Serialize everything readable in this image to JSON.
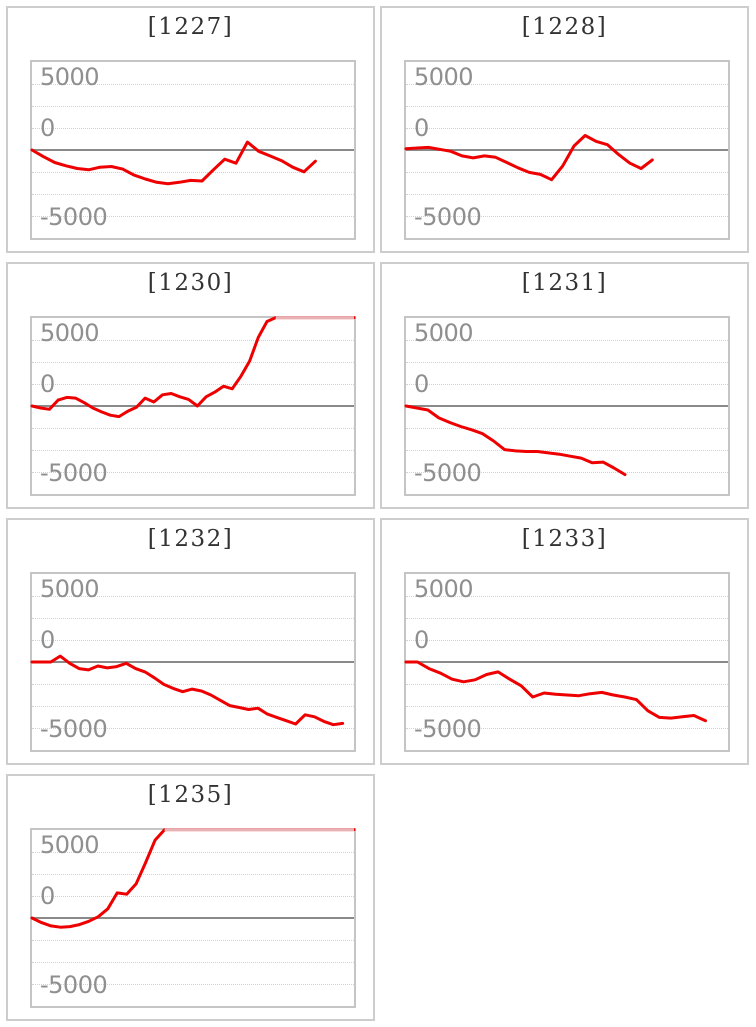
{
  "page": {
    "description": "Grid of per-machine daily slump graphs",
    "background": "#ffffff"
  },
  "colors": {
    "line": "#ee0000",
    "line_capped": "#e9b3b6",
    "zero_line": "#8a8a8a",
    "grid_dotted": "#d2d2d2",
    "plot_border": "#c5c5c5",
    "panel_border": "#cdcdcd",
    "axis_text": "#8f8f8f",
    "title_text": "#333333"
  },
  "axis": {
    "y_tick_labels": [
      "5000",
      "0",
      "-5000"
    ],
    "grid": "dotted horizontal lines every 1667 units, solid gray line at 0"
  },
  "chart_data": [
    {
      "type": "line",
      "title": "[1227]",
      "y_tick_labels": [
        "5000",
        "0",
        "-5000"
      ],
      "ylim": [
        -6667,
        6667
      ],
      "grid": true,
      "legend": "none",
      "end_frac": 0.88,
      "values": [
        0,
        -500,
        -950,
        -1200,
        -1400,
        -1500,
        -1300,
        -1250,
        -1450,
        -1900,
        -2200,
        -2450,
        -2550,
        -2450,
        -2300,
        -2350,
        -1500,
        -700,
        -1000,
        600,
        -100,
        -450,
        -800,
        -1300,
        -1650,
        -850
      ]
    },
    {
      "type": "line",
      "title": "[1228]",
      "y_tick_labels": [
        "5000",
        "0",
        "-5000"
      ],
      "ylim": [
        -6667,
        6667
      ],
      "grid": true,
      "legend": "none",
      "end_frac": 0.765,
      "values": [
        100,
        150,
        200,
        50,
        -100,
        -450,
        -600,
        -450,
        -550,
        -950,
        -1350,
        -1700,
        -1850,
        -2250,
        -1200,
        300,
        1100,
        650,
        400,
        -350,
        -1000,
        -1400,
        -750
      ]
    },
    {
      "type": "line",
      "title": "[1230]",
      "y_tick_labels": [
        "5000",
        "0",
        "-5000"
      ],
      "ylim": [
        -6667,
        6667
      ],
      "grid": true,
      "legend": "none",
      "end_frac": 1.0,
      "values": [
        0,
        -150,
        -250,
        450,
        650,
        600,
        250,
        -150,
        -450,
        -700,
        -800,
        -400,
        -100,
        600,
        300,
        850,
        950,
        700,
        500,
        0,
        700,
        1050,
        1500,
        1300,
        2250,
        3400,
        5200,
        6400,
        6700,
        6700,
        6700,
        6700,
        6700,
        6700,
        6700,
        6700,
        6700,
        6700
      ]
    },
    {
      "type": "line",
      "title": "[1231]",
      "y_tick_labels": [
        "5000",
        "0",
        "-5000"
      ],
      "ylim": [
        -6667,
        6667
      ],
      "grid": true,
      "legend": "none",
      "end_frac": 0.68,
      "values": [
        0,
        -150,
        -300,
        -900,
        -1250,
        -1550,
        -1800,
        -2100,
        -2650,
        -3300,
        -3400,
        -3450,
        -3450,
        -3550,
        -3650,
        -3800,
        -3950,
        -4300,
        -4250,
        -4700,
        -5200
      ]
    },
    {
      "type": "line",
      "title": "[1232]",
      "y_tick_labels": [
        "5000",
        "0",
        "-5000"
      ],
      "ylim": [
        -6667,
        6667
      ],
      "grid": true,
      "legend": "none",
      "end_frac": 0.965,
      "values": [
        0,
        0,
        0,
        450,
        -100,
        -500,
        -600,
        -300,
        -450,
        -350,
        -100,
        -500,
        -750,
        -1200,
        -1700,
        -2000,
        -2250,
        -2050,
        -2200,
        -2500,
        -2900,
        -3300,
        -3450,
        -3600,
        -3500,
        -3950,
        -4200,
        -4450,
        -4700,
        -4000,
        -4150,
        -4500,
        -4750,
        -4650
      ]
    },
    {
      "type": "line",
      "title": "[1233]",
      "y_tick_labels": [
        "5000",
        "0",
        "-5000"
      ],
      "ylim": [
        -6667,
        6667
      ],
      "grid": true,
      "legend": "none",
      "end_frac": 0.93,
      "values": [
        0,
        0,
        -500,
        -850,
        -1300,
        -1500,
        -1350,
        -950,
        -750,
        -1300,
        -1800,
        -2650,
        -2350,
        -2450,
        -2500,
        -2550,
        -2400,
        -2300,
        -2500,
        -2650,
        -2850,
        -3700,
        -4200,
        -4250,
        -4150,
        -4050,
        -4450
      ]
    },
    {
      "type": "line",
      "title": "[1235]",
      "y_tick_labels": [
        "5000",
        "0",
        "-5000"
      ],
      "ylim": [
        -6667,
        6667
      ],
      "grid": true,
      "legend": "none",
      "end_frac": 1.0,
      "values": [
        0,
        -350,
        -600,
        -700,
        -650,
        -500,
        -250,
        100,
        700,
        1900,
        1800,
        2600,
        4200,
        5900,
        6700,
        6700,
        6700,
        6700,
        6700,
        6700,
        6700,
        6700,
        6700,
        6700,
        6700,
        6700,
        6700,
        6700,
        6700,
        6700,
        6700,
        6700,
        6700,
        6700,
        6700
      ]
    }
  ]
}
